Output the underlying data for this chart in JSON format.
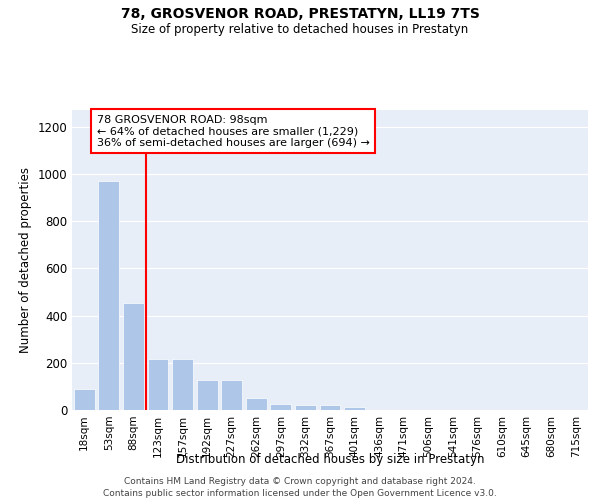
{
  "title": "78, GROSVENOR ROAD, PRESTATYN, LL19 7TS",
  "subtitle": "Size of property relative to detached houses in Prestatyn",
  "xlabel": "Distribution of detached houses by size in Prestatyn",
  "ylabel": "Number of detached properties",
  "categories": [
    "18sqm",
    "53sqm",
    "88sqm",
    "123sqm",
    "157sqm",
    "192sqm",
    "227sqm",
    "262sqm",
    "297sqm",
    "332sqm",
    "367sqm",
    "401sqm",
    "436sqm",
    "471sqm",
    "506sqm",
    "541sqm",
    "576sqm",
    "610sqm",
    "645sqm",
    "680sqm",
    "715sqm"
  ],
  "values": [
    88,
    970,
    455,
    215,
    215,
    125,
    125,
    50,
    25,
    22,
    20,
    13,
    0,
    0,
    0,
    0,
    0,
    0,
    0,
    0,
    0
  ],
  "bar_color": "#aec6e8",
  "red_line_x": 2.5,
  "annotation_text": "78 GROSVENOR ROAD: 98sqm\n← 64% of detached houses are smaller (1,229)\n36% of semi-detached houses are larger (694) →",
  "annotation_box_color": "white",
  "annotation_box_edge": "red",
  "ylim": [
    0,
    1270
  ],
  "yticks": [
    0,
    200,
    400,
    600,
    800,
    1000,
    1200
  ],
  "bg_color": "#e8eef8",
  "footnote1": "Contains HM Land Registry data © Crown copyright and database right 2024.",
  "footnote2": "Contains public sector information licensed under the Open Government Licence v3.0."
}
